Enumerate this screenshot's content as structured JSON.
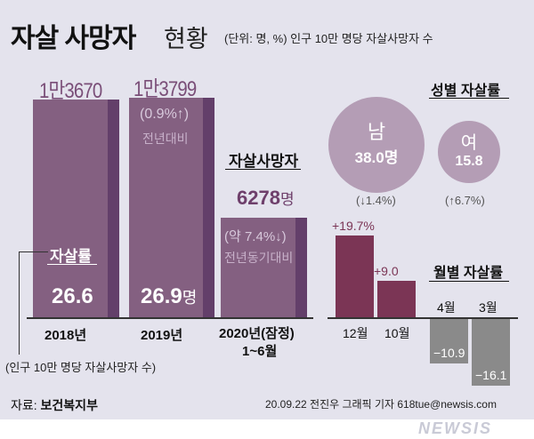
{
  "header": {
    "title_bold": "자살 사망자",
    "title_light": "현황",
    "unit_note": "(단위: 명, %) 인구 10만 명당 자살사망자 수"
  },
  "colors": {
    "background": "#e4e3ed",
    "bar": "#846081",
    "bar_side": "#633f6a",
    "circle": "#b49db5",
    "month_positive": "#7b3555",
    "month_negative": "#8a8a8a"
  },
  "annual": {
    "items": [
      {
        "year": "2018년",
        "deaths": "1만3670",
        "rate": "26.6",
        "rate_unit": ""
      },
      {
        "year": "2019년",
        "deaths": "1만3799",
        "rate": "26.9",
        "rate_unit": "명",
        "change": "(0.9%↑)",
        "change_note": "전년대비"
      },
      {
        "year": "2020년(잠정)",
        "year2": "1~6월",
        "deaths_label": "자살사망자",
        "deaths": "6278",
        "deaths_unit": "명",
        "change": "(약 7.4%↓)",
        "change_note": "전년동기대비"
      }
    ],
    "rate_label": "자살률",
    "rate_note": "(인구 10만 명당 자살사망자 수)"
  },
  "gender": {
    "title": "성별 자살률",
    "male": {
      "label": "남",
      "value": "38.0명",
      "change": "(↓1.4%)"
    },
    "female": {
      "label": "여",
      "value": "15.8",
      "change": "(↑6.7%)"
    }
  },
  "chart_data": {
    "type": "bar",
    "title": "월별 자살률",
    "categories": [
      "12월",
      "10월",
      "4월",
      "3월"
    ],
    "values": [
      19.7,
      9.0,
      -10.9,
      -16.1
    ],
    "data_labels": [
      "+19.7%",
      "+9.0",
      "−10.9",
      "−16.1"
    ]
  },
  "footer": {
    "source_label": "자료:",
    "source": "보건복지부",
    "credit": "20.09.22 전진우 그래픽 기자 618tue@newsis.com",
    "watermark": "NEWSIS"
  }
}
